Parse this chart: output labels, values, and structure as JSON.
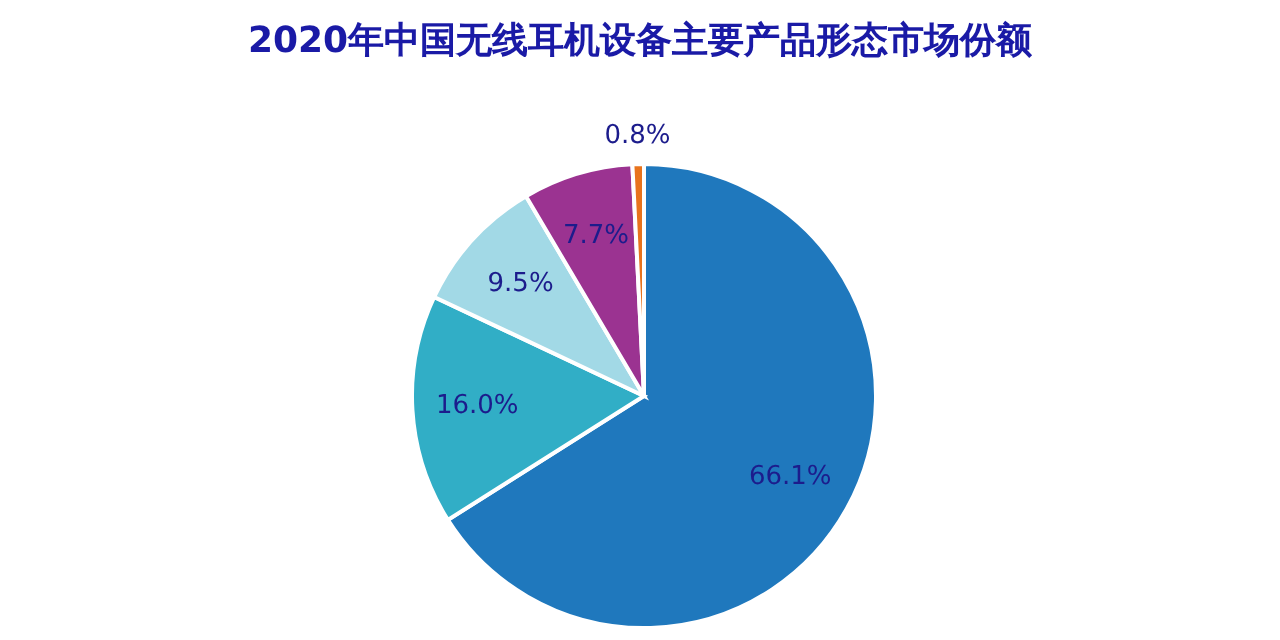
{
  "chart_data": {
    "type": "pie",
    "title": "2020年中国无线耳机设备主要产品形态市场份额",
    "categories": [
      null,
      null,
      null,
      null,
      null
    ],
    "values": [
      66.1,
      16.0,
      9.5,
      7.7,
      0.8
    ],
    "value_labels": [
      "66.1%",
      "16.0%",
      "9.5%",
      "7.7%",
      "0.8%"
    ],
    "colors": [
      "#1f78bd",
      "#31aec6",
      "#a2d9e6",
      "#9b3391",
      "#e8731c"
    ]
  }
}
